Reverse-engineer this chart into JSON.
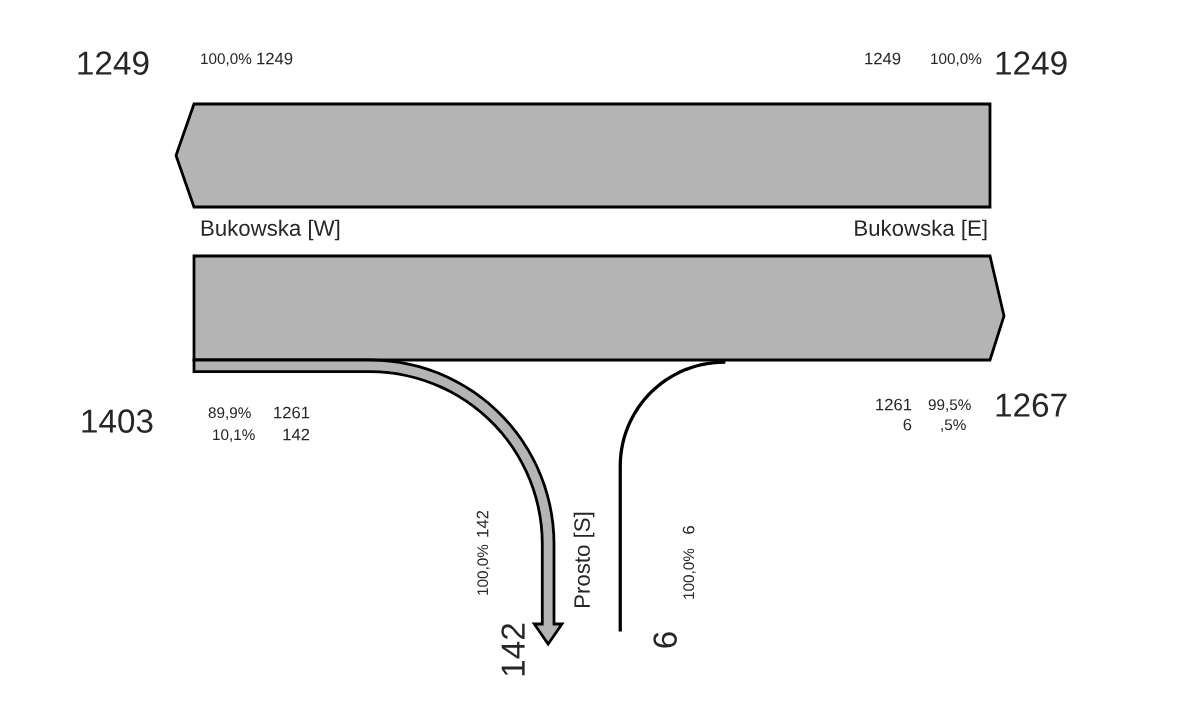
{
  "chart_data": {
    "type": "other",
    "categories": [
      null,
      null,
      null,
      null
    ],
    "values": [
      1249,
      1261,
      142,
      6
    ],
    "value_labels": [
      "1249",
      "1261",
      "142",
      "6"
    ],
    "colors": [
      "#b4b4b4",
      "#b4b4b4",
      "#b4b4b4",
      "#b4b4b4"
    ],
    "annotations": [
      "1249",
      "100,0%",
      "1249",
      "100,0%",
      "1249",
      "Bukowska [W]",
      "Bukowska [E]",
      "1403",
      "89,9%",
      "10,1%",
      "1261",
      "6",
      "99,5%",
      ",5%",
      "1267",
      "100,0%",
      "142",
      "Prosto [S]",
      "100,0%",
      "142",
      "6"
    ]
  }
}
